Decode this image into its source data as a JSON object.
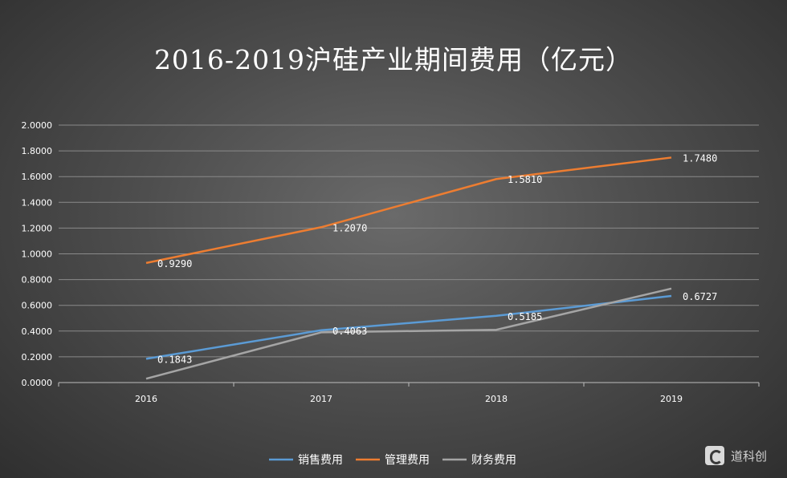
{
  "chart_data": {
    "type": "line",
    "title": "2016-2019沪硅产业期间费用（亿元）",
    "categories": [
      "2016",
      "2017",
      "2018",
      "2019"
    ],
    "ylim": [
      0,
      2
    ],
    "yticks": [
      "0.0000",
      "0.2000",
      "0.4000",
      "0.6000",
      "0.8000",
      "1.0000",
      "1.2000",
      "1.4000",
      "1.6000",
      "1.8000",
      "2.0000"
    ],
    "grid": true,
    "legend_position": "bottom",
    "series": [
      {
        "name": "销售费用",
        "values": [
          0.1843,
          0.4063,
          0.5185,
          0.6727
        ],
        "labels": [
          "0.1843",
          "0.4063",
          "0.5185",
          "0.6727"
        ],
        "color": "#5b9bd5"
      },
      {
        "name": "管理费用",
        "values": [
          0.929,
          1.207,
          1.581,
          1.748
        ],
        "labels": [
          "0.9290",
          "1.2070",
          "1.5810",
          "1.7480"
        ],
        "color": "#ed7d31"
      },
      {
        "name": "财务费用",
        "values": [
          0.03,
          0.39,
          0.41,
          0.73
        ],
        "labels": [],
        "color": "#a5a5a5"
      }
    ]
  },
  "watermark": {
    "text": "道科创"
  }
}
